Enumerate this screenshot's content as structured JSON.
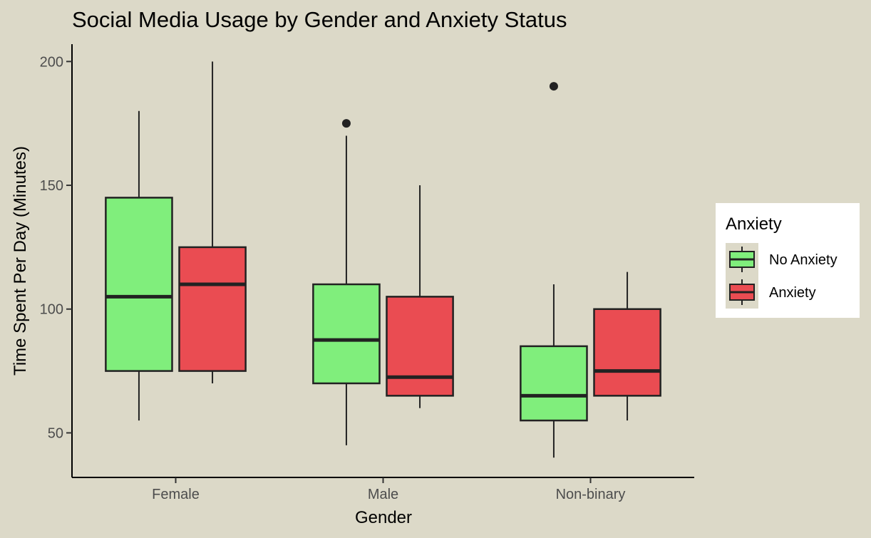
{
  "chart_data": {
    "type": "box",
    "title": "Social Media Usage by Gender and Anxiety Status",
    "xlabel": "Gender",
    "ylabel": "Time Spent Per Day (Minutes)",
    "categories": [
      "Female",
      "Male",
      "Non-binary"
    ],
    "y_ticks": [
      50,
      100,
      150,
      200
    ],
    "ylim": [
      32,
      207
    ],
    "grid": false,
    "legend": {
      "title": "Anxiety",
      "position": "right"
    },
    "series": [
      {
        "name": "No Anxiety",
        "color": "#80ee7c",
        "boxes": [
          {
            "min": 55,
            "q1": 75,
            "median": 105,
            "q3": 145,
            "max": 180,
            "outliers": []
          },
          {
            "min": 45,
            "q1": 70,
            "median": 87.5,
            "q3": 110,
            "max": 170,
            "outliers": [
              175
            ]
          },
          {
            "min": 40,
            "q1": 55,
            "median": 65,
            "q3": 85,
            "max": 110,
            "outliers": [
              190
            ]
          }
        ]
      },
      {
        "name": "Anxiety",
        "color": "#ea4c52",
        "boxes": [
          {
            "min": 70,
            "q1": 75,
            "median": 110,
            "q3": 125,
            "max": 200,
            "outliers": []
          },
          {
            "min": 60,
            "q1": 65,
            "median": 72.5,
            "q3": 105,
            "max": 150,
            "outliers": []
          },
          {
            "min": 55,
            "q1": 65,
            "median": 75,
            "q3": 100,
            "max": 115,
            "outliers": []
          }
        ]
      }
    ]
  }
}
